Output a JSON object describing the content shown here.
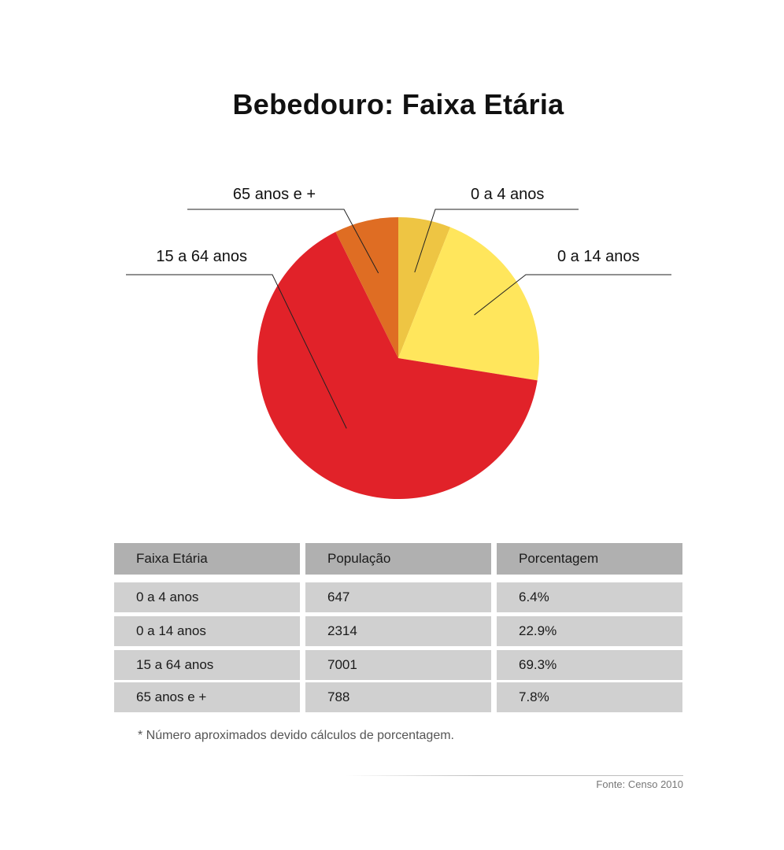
{
  "chart_data": {
    "type": "pie",
    "title": "Bebedouro: Faixa Etária",
    "slices": [
      {
        "label": "0 a 4 anos",
        "value": 6.4,
        "color": "#EEC543"
      },
      {
        "label": "0 a 14 anos",
        "value": 22.9,
        "color": "#FFE65C"
      },
      {
        "label": "15 a 64 anos",
        "value": 69.3,
        "color": "#E12229"
      },
      {
        "label": "65 anos e +",
        "value": 7.8,
        "color": "#DF6D23"
      }
    ]
  },
  "table": {
    "headers": [
      "Faixa Etária",
      "População",
      "Porcentagem"
    ],
    "rows": [
      [
        "0 a 4 anos",
        "647",
        "6.4%"
      ],
      [
        "0 a 14 anos",
        "2314",
        "22.9%"
      ],
      [
        "15 a 64 anos",
        "7001",
        "69.3%"
      ],
      [
        "65 anos e +",
        "788",
        "7.8%"
      ]
    ]
  },
  "footnote": "* Número aproximados devido cálculos de porcentagem.",
  "source": "Fonte: Censo 2010"
}
